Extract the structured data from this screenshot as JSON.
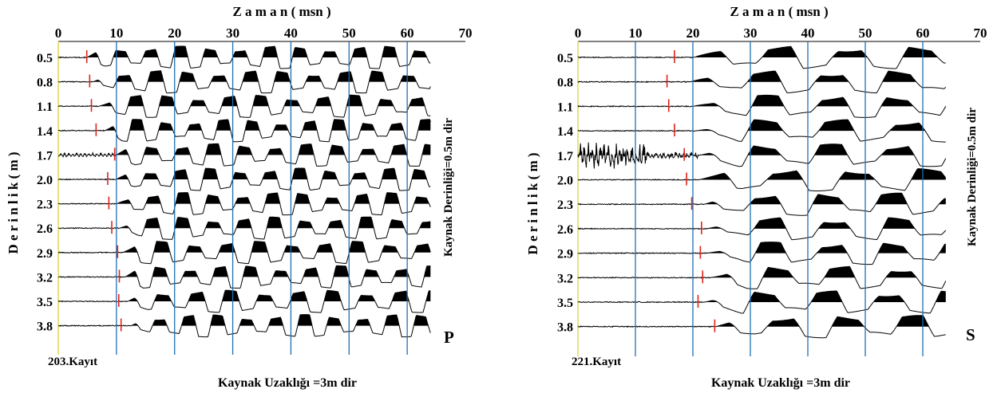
{
  "chart_data": [
    {
      "type": "seismic-wiggle",
      "title": "Z a m a n  ( msn )",
      "ylabel": "D e r i n l i k  ( m )",
      "right_label": "Kaynak Derinliği=0.5m  dir",
      "bottom_label": "Kaynak Uzaklığı =3m  dir",
      "record_label": "203.Kayıt",
      "wave_label": "P",
      "xlim": [
        0,
        70
      ],
      "x_ticks": [
        "0",
        "10",
        "20",
        "30",
        "40",
        "50",
        "60",
        "70"
      ],
      "gridlines_x": [
        10,
        20,
        30,
        40,
        50,
        60
      ],
      "depths": [
        "0.5",
        "0.8",
        "1.1",
        "1.4",
        "1.7",
        "2.0",
        "2.3",
        "2.6",
        "2.9",
        "3.2",
        "3.5",
        "3.8"
      ],
      "first_arrival_ms": [
        4.9,
        5.4,
        5.7,
        6.5,
        9.7,
        8.5,
        8.7,
        9.2,
        10.2,
        10.5,
        10.4,
        10.8
      ],
      "signal_onset_ms": [
        5.0,
        6.0,
        7.0,
        8.0,
        10.0,
        10.0,
        10.0,
        10.5,
        11.0,
        11.5,
        12.0,
        12.5
      ],
      "trace_end_ms": 64,
      "dominant_period_ms": 5.3,
      "colors": {
        "grid": "#1f6fb5",
        "pick": "#e0241b",
        "axis_left": "#e8e27a",
        "trace": "#000000"
      }
    },
    {
      "type": "seismic-wiggle",
      "title": "Z a m a n  ( msn )",
      "ylabel": "D e r i n l i k  ( m )",
      "right_label": "Kaynak Derinliği=0.5m  dir",
      "bottom_label": "Kaynak Uzaklığı =3m  dir",
      "record_label": "221.Kayıt",
      "wave_label": "S",
      "xlim": [
        0,
        70
      ],
      "x_ticks": [
        "0",
        "10",
        "20",
        "30",
        "40",
        "50",
        "60",
        "70"
      ],
      "gridlines_x": [
        10,
        20,
        30,
        40,
        50,
        60
      ],
      "depths": [
        "0.5",
        "0.8",
        "1.1",
        "1.4",
        "1.7",
        "2.0",
        "2.3",
        "2.6",
        "2.9",
        "3.2",
        "3.5",
        "3.8"
      ],
      "first_arrival_ms": [
        16.8,
        15.5,
        15.8,
        16.8,
        18.5,
        18.9,
        19.8,
        21.5,
        21.3,
        21.7,
        20.9,
        23.8
      ],
      "signal_onset_ms": [
        20.0,
        19.5,
        20.0,
        20.5,
        21.0,
        21.0,
        22.0,
        22.5,
        22.5,
        23.0,
        22.0,
        24.0
      ],
      "trace_end_ms": 64,
      "dominant_period_ms": 11.5,
      "colors": {
        "grid": "#1f6fb5",
        "pick": "#e0241b",
        "axis_left": "#e8e27a",
        "trace": "#000000"
      }
    }
  ]
}
